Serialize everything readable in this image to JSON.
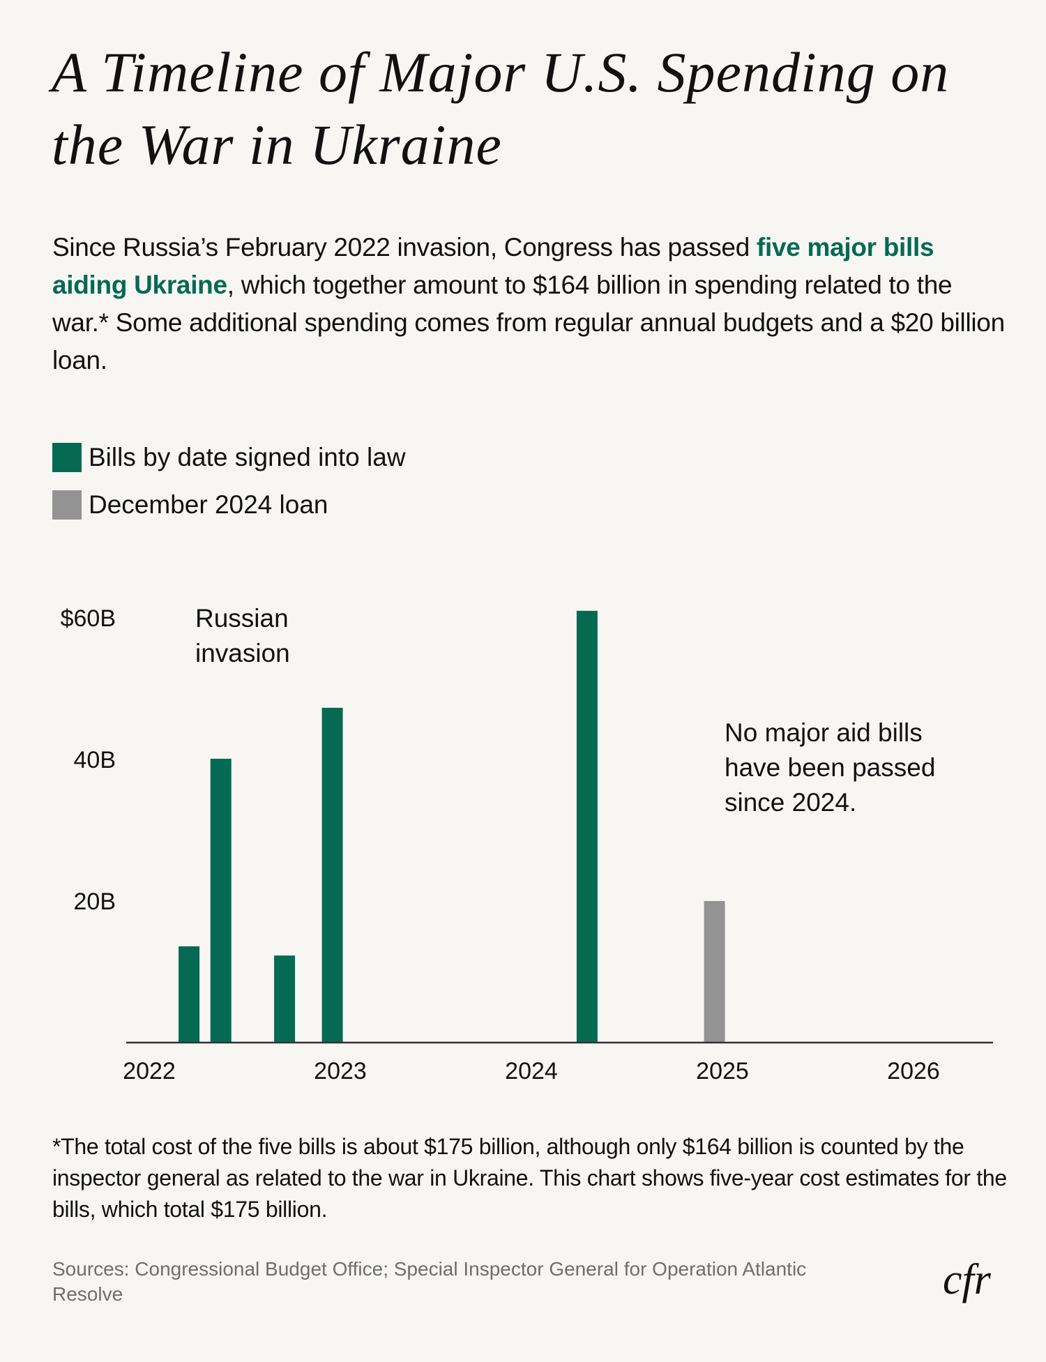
{
  "header": {
    "title": "A Timeline of Major U.S. Spending on the War in Ukraine",
    "intro_before": "Since Russia’s February 2022 invasion, Congress has passed ",
    "intro_highlight": "five major bills aiding Ukraine",
    "intro_after": ", which together amount to $164 billion in spending related to the war.* Some additional spending comes from regular annual budgets and a $20 billion loan."
  },
  "colors": {
    "bills": "#066a53",
    "loan": "#939393",
    "highlight": "#066a53",
    "background": "#f7f6f3"
  },
  "chart_data": {
    "type": "bar",
    "title": "",
    "xlabel": "",
    "ylabel": "",
    "xlim": [
      2022,
      2026.4
    ],
    "ylim": [
      0,
      60
    ],
    "grid": false,
    "legend_placement": "top-left",
    "x_ticks": [
      "2022",
      "2023",
      "2024",
      "2025",
      "2026"
    ],
    "y_ticks": [
      {
        "value": 20,
        "label": "20B"
      },
      {
        "value": 40,
        "label": "40B"
      },
      {
        "value": 60,
        "label": "$60B"
      }
    ],
    "series": [
      {
        "name": "Bills by date signed into law",
        "color": "#066a53",
        "points": [
          {
            "date": "2022-03",
            "value": 13.6
          },
          {
            "date": "2022-05",
            "value": 40.1
          },
          {
            "date": "2022-09",
            "value": 12.3
          },
          {
            "date": "2022-12",
            "value": 47.3
          },
          {
            "date": "2024-04",
            "value": 61
          }
        ]
      },
      {
        "name": "December 2024 loan",
        "color": "#939393",
        "points": [
          {
            "date": "2024-12",
            "value": 20
          }
        ]
      }
    ],
    "annotations": [
      "Russian invasion",
      "No major aid bills have been passed since 2024."
    ]
  },
  "footer": {
    "note": "*The total cost of the five bills is about $175 billion, although only $164 billion is counted by the inspector general as related to the war in Ukraine. This chart shows five-year cost estimates for the bills, which total $175 billion.",
    "sources": "Sources: Congressional Budget Office; Special Inspector General for Operation Atlantic Resolve",
    "logo": "cfr"
  }
}
